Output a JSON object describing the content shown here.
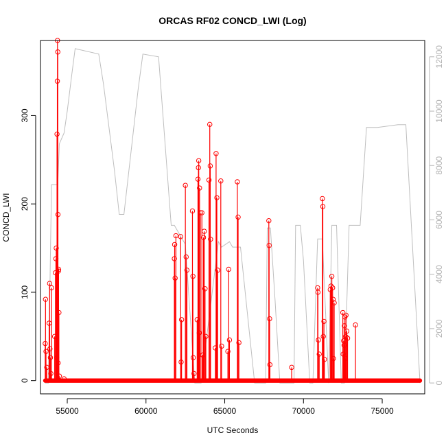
{
  "chart_data": {
    "type": "line",
    "title": "ORCAS RF02 CONCD_LWI (Log)",
    "xlabel": "UTC Seconds",
    "ylabel": "CONCD_LWI",
    "xlim": [
      53300,
      77700
    ],
    "ylim": [
      -15,
      385
    ],
    "y2lim": [
      -400,
      12600
    ],
    "xticks": [
      55000,
      60000,
      65000,
      70000,
      75000
    ],
    "yticks": [
      0,
      100,
      200,
      300
    ],
    "y2ticks": [
      0,
      2000,
      4000,
      6000,
      8000,
      10000,
      12000
    ],
    "grid": false,
    "legend": "none",
    "colors": {
      "concentration": "#ff0000",
      "altitude": "#bebebe",
      "frame": "#000000",
      "right_axis": "#b3b3b3"
    },
    "series": [
      {
        "kind": "spikes",
        "color": "#ff0000",
        "x": [
          53600,
          53620,
          53650,
          53700,
          53850,
          53880,
          53900,
          53930,
          53960,
          54000,
          54200,
          54250,
          54280,
          54300,
          54330,
          54350,
          54370,
          54380,
          54400,
          54410,
          54420,
          54440,
          54450,
          54470,
          54500,
          54800,
          61800,
          61820,
          61850,
          61900,
          62200,
          62230,
          62260,
          62500,
          62550,
          62600,
          62950,
          62980,
          63000,
          63050,
          63250,
          63300,
          63330,
          63350,
          63380,
          63400,
          63450,
          63550,
          63600,
          63650,
          63700,
          63750,
          63800,
          64000,
          64050,
          64080,
          64100,
          64400,
          64450,
          64500,
          64550,
          64750,
          64800,
          65200,
          65250,
          65300,
          65800,
          65850,
          65900,
          67800,
          67820,
          67850,
          67870,
          69250,
          70900,
          70920,
          70950,
          71000,
          71200,
          71230,
          71260,
          71300,
          71330,
          71700,
          71750,
          71800,
          71850,
          71880,
          71900,
          71950,
          72500,
          72520,
          72550,
          72580,
          72600,
          72630,
          72650,
          72680,
          72700,
          72750,
          72800,
          73300
        ],
        "values": [
          42,
          92,
          33,
          15,
          65,
          110,
          36,
          26,
          8,
          105,
          50,
          122,
          138,
          150,
          26,
          279,
          339,
          385,
          372,
          188,
          20,
          124,
          126,
          77,
          5,
          2,
          138,
          154,
          116,
          164,
          163,
          21,
          69,
          221,
          140,
          125,
          192,
          118,
          26,
          8,
          69,
          228,
          241,
          249,
          54,
          218,
          190,
          190,
          29,
          162,
          169,
          104,
          50,
          227,
          290,
          243,
          160,
          37,
          257,
          207,
          125,
          226,
          39,
          33,
          126,
          46,
          225,
          185,
          43,
          181,
          153,
          70,
          18,
          15,
          105,
          100,
          46,
          30,
          206,
          197,
          50,
          67,
          24,
          103,
          107,
          118,
          105,
          92,
          25,
          88,
          77,
          30,
          45,
          40,
          62,
          72,
          25,
          50,
          74,
          56,
          48,
          63
        ],
        "baseline_marker_range": [
          53600,
          77400
        ]
      },
      {
        "kind": "line",
        "axis": "right",
        "color": "#bebebe",
        "x": [
          53600,
          53800,
          54000,
          54400,
          54500,
          54800,
          55000,
          55300,
          55500,
          57000,
          57300,
          58000,
          58300,
          58600,
          59500,
          59800,
          60800,
          61600,
          61800,
          62500,
          63100,
          63500,
          64600,
          64800,
          65300,
          65500,
          66000,
          66900,
          67200,
          67600,
          67700,
          67900,
          68200,
          68500,
          68900,
          69100,
          69400,
          69500,
          69800,
          70000,
          70400,
          70600,
          70900,
          71200,
          71600,
          71800,
          72100,
          72400,
          72600,
          72900,
          73100,
          73400,
          73600,
          74000,
          74700,
          76000,
          76500,
          77400
        ],
        "values": [
          0,
          0,
          7300,
          7300,
          8800,
          9200,
          10000,
          11400,
          12300,
          12100,
          11000,
          7800,
          6200,
          6200,
          10800,
          12100,
          12000,
          5800,
          5800,
          5100,
          0,
          0,
          5200,
          5000,
          5200,
          5000,
          5000,
          0,
          0,
          0,
          5700,
          5700,
          3000,
          0,
          0,
          0,
          0,
          5800,
          5800,
          4500,
          0,
          0,
          5300,
          5300,
          0,
          5800,
          5800,
          0,
          0,
          5800,
          5800,
          5800,
          5800,
          9400,
          9400,
          9500,
          9500,
          0
        ]
      }
    ]
  }
}
